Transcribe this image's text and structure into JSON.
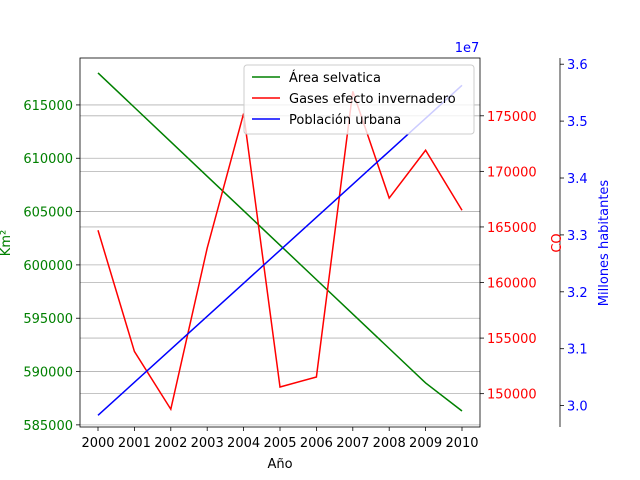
{
  "chart_data": {
    "type": "line",
    "xlabel": "Año",
    "x": [
      2000,
      2001,
      2002,
      2003,
      2004,
      2005,
      2006,
      2007,
      2008,
      2009,
      2010
    ],
    "grid": "horizontal",
    "legend_placement": "top-right",
    "axes": {
      "left": {
        "label": "Km²",
        "color": "#008000",
        "ylim": [
          584800,
          619400
        ],
        "ticks": [
          585000,
          590000,
          595000,
          600000,
          605000,
          610000,
          615000
        ]
      },
      "right1": {
        "label": "CO",
        "color": "#ff0000",
        "ylim": [
          147000,
          180200
        ],
        "ticks": [
          150000,
          155000,
          160000,
          165000,
          170000,
          175000
        ]
      },
      "right2": {
        "label": "Millones habitantes",
        "color": "#0000ff",
        "ylim": [
          29624000.0,
          36109000.0
        ],
        "ticks": [
          30000000.0,
          31000000.0,
          32000000.0,
          33000000.0,
          34000000.0,
          35000000.0,
          36000000.0
        ],
        "tick_labels": [
          "3.0",
          "3.1",
          "3.2",
          "3.3",
          "3.4",
          "3.5",
          "3.6"
        ],
        "offset_text": "1e7"
      }
    },
    "series": [
      {
        "name": "Área selvatica",
        "axis": "left",
        "color": "#008000",
        "values": [
          618000,
          614770,
          611540,
          608310,
          605080,
          601850,
          598620,
          595390,
          592160,
          588930,
          586300
        ]
      },
      {
        "name": "Gases efecto invernadero",
        "axis": "right1",
        "color": "#ff0000",
        "values": [
          164700,
          153800,
          148600,
          163100,
          175200,
          150600,
          151500,
          177200,
          167600,
          171900,
          166500
        ]
      },
      {
        "name": "Población urbana",
        "axis": "right2",
        "color": "#0000ff",
        "values": [
          29830000.0,
          30410000.0,
          30990000.0,
          31570000.0,
          32150000.0,
          32730000.0,
          33310000.0,
          33890000.0,
          34470000.0,
          35050000.0,
          35630000.0
        ]
      }
    ]
  }
}
